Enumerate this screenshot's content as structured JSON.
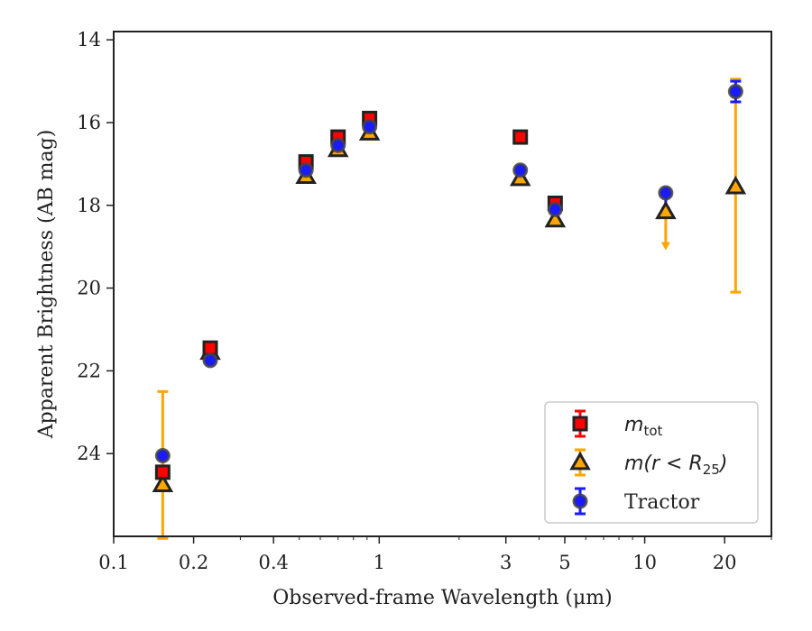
{
  "chart_data": {
    "type": "scatter",
    "title": "",
    "xlabel": "Observed-frame Wavelength (μm)",
    "ylabel": "Apparent Brightness (AB mag)",
    "xscale": "log",
    "xlim": [
      0.1,
      30
    ],
    "ylim": [
      26.0,
      13.8
    ],
    "y_inverted": true,
    "grid": false,
    "legend_position": "lower right",
    "x_ticks": [
      0.1,
      0.2,
      0.4,
      1,
      3,
      5,
      10,
      20
    ],
    "x_tick_labels": [
      "0.1",
      "0.2",
      "0.4",
      "1",
      "3",
      "5",
      "10",
      "20"
    ],
    "y_ticks": [
      14,
      16,
      18,
      20,
      22,
      24
    ],
    "y_tick_labels": [
      "14",
      "16",
      "18",
      "20",
      "22",
      "24"
    ],
    "series": [
      {
        "name": "m_tot",
        "label_base": "m",
        "label_sub": "tot",
        "marker": "square",
        "color": "#ff0000",
        "edge_color": "#222222",
        "errbar_color": "#ff0000",
        "points": [
          {
            "x": 0.153,
            "y": 24.45
          },
          {
            "x": 0.231,
            "y": 21.45
          },
          {
            "x": 0.53,
            "y": 16.95
          },
          {
            "x": 0.7,
            "y": 16.35
          },
          {
            "x": 0.92,
            "y": 15.9
          },
          {
            "x": 3.4,
            "y": 16.35
          },
          {
            "x": 4.6,
            "y": 17.95
          }
        ]
      },
      {
        "name": "m(r < R25)",
        "label_base": "m(r < R",
        "label_sub": "25",
        "label_end": ")",
        "marker": "triangle",
        "color": "#ffa500",
        "edge_color": "#222222",
        "errbar_color": "#ffa500",
        "points": [
          {
            "x": 0.153,
            "y": 24.75,
            "err_low": 2.25,
            "err_high": 1.3
          },
          {
            "x": 0.231,
            "y": 21.55
          },
          {
            "x": 0.53,
            "y": 17.3
          },
          {
            "x": 0.7,
            "y": 16.65
          },
          {
            "x": 0.92,
            "y": 16.25
          },
          {
            "x": 3.4,
            "y": 17.35
          },
          {
            "x": 4.6,
            "y": 18.35
          },
          {
            "x": 12.0,
            "y": 18.15,
            "upper_limit": true
          },
          {
            "x": 22.0,
            "y": 17.55,
            "err_low": 2.6,
            "err_high": 2.55
          }
        ]
      },
      {
        "name": "Tractor",
        "label_base": "Tractor",
        "marker": "circle",
        "color": "#1a1aff",
        "edge_color": "#444444",
        "errbar_color": "#1a1aff",
        "points": [
          {
            "x": 0.153,
            "y": 24.05
          },
          {
            "x": 0.231,
            "y": 21.75
          },
          {
            "x": 0.53,
            "y": 17.15
          },
          {
            "x": 0.7,
            "y": 16.55
          },
          {
            "x": 0.92,
            "y": 16.1
          },
          {
            "x": 3.4,
            "y": 17.15
          },
          {
            "x": 4.6,
            "y": 18.1
          },
          {
            "x": 12.0,
            "y": 17.7,
            "upper_limit": true
          },
          {
            "x": 22.0,
            "y": 15.25,
            "err_low": 0.25,
            "err_high": 0.25
          }
        ]
      }
    ]
  }
}
